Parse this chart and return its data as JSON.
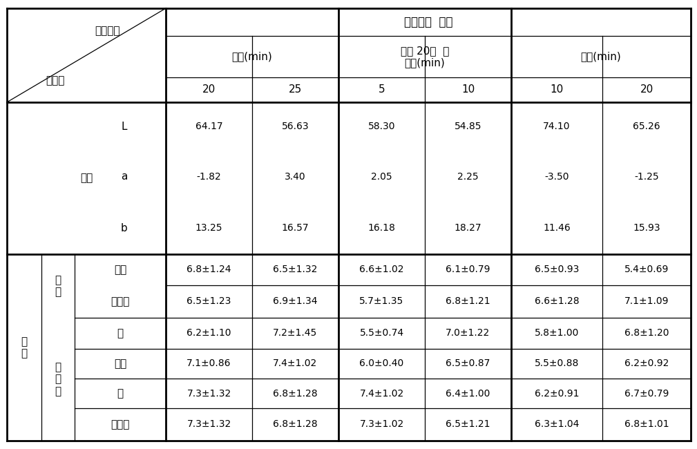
{
  "title": "레토르트  살균",
  "col_group1": "오븐(min)",
  "col_group2": "오븐 20분  후\n그릴(min)",
  "col_group3": "그릴(min)",
  "sub_headers": [
    "20",
    "25",
    "5",
    "10",
    "10",
    "20"
  ],
  "diag_label_left": "처리구",
  "diag_label_right": "평가항목",
  "section1_label": "색도",
  "section1_rows": [
    [
      "L",
      "64.17",
      "56.63",
      "58.30",
      "54.85",
      "74.10",
      "65.26"
    ],
    [
      "a",
      "-1.82",
      "3.40",
      "2.05",
      "2.25",
      "-3.50",
      "-1.25"
    ],
    [
      "b",
      "13.25",
      "16.57",
      "16.18",
      "18.27",
      "11.46",
      "15.93"
    ]
  ],
  "section2_label": "관\n능",
  "section2_sub1": "강\n도",
  "section2_sub1_rows": [
    [
      "수분",
      "6.8±1.24",
      "6.5±1.32",
      "6.6±1.02",
      "6.1±0.79",
      "6.5±0.93",
      "5.4±0.69"
    ],
    [
      "바삭함",
      "6.5±1.23",
      "6.9±1.34",
      "5.7±1.35",
      "6.8±1.21",
      "6.6±1.28",
      "7.1±1.09"
    ]
  ],
  "section2_sub2": "기\n호\n도",
  "section2_sub2_rows": [
    [
      "향",
      "6.2±1.10",
      "7.2±1.45",
      "5.5±0.74",
      "7.0±1.22",
      "5.8±1.00",
      "6.8±1.20"
    ],
    [
      "색깔",
      "7.1±0.86",
      "7.4±1.02",
      "6.0±0.40",
      "6.5±0.87",
      "5.5±0.88",
      "6.2±0.92"
    ],
    [
      "맛",
      "7.3±1.32",
      "6.8±1.28",
      "7.4±1.02",
      "6.4±1.00",
      "6.2±0.91",
      "6.7±0.79"
    ],
    [
      "종합적",
      "7.3±1.32",
      "6.8±1.28",
      "7.3±1.02",
      "6.5±1.21",
      "6.3±1.04",
      "6.8±1.01"
    ]
  ],
  "bg_color": "#ffffff",
  "line_color": "#000000",
  "font_size": 11,
  "font_size_small": 10
}
